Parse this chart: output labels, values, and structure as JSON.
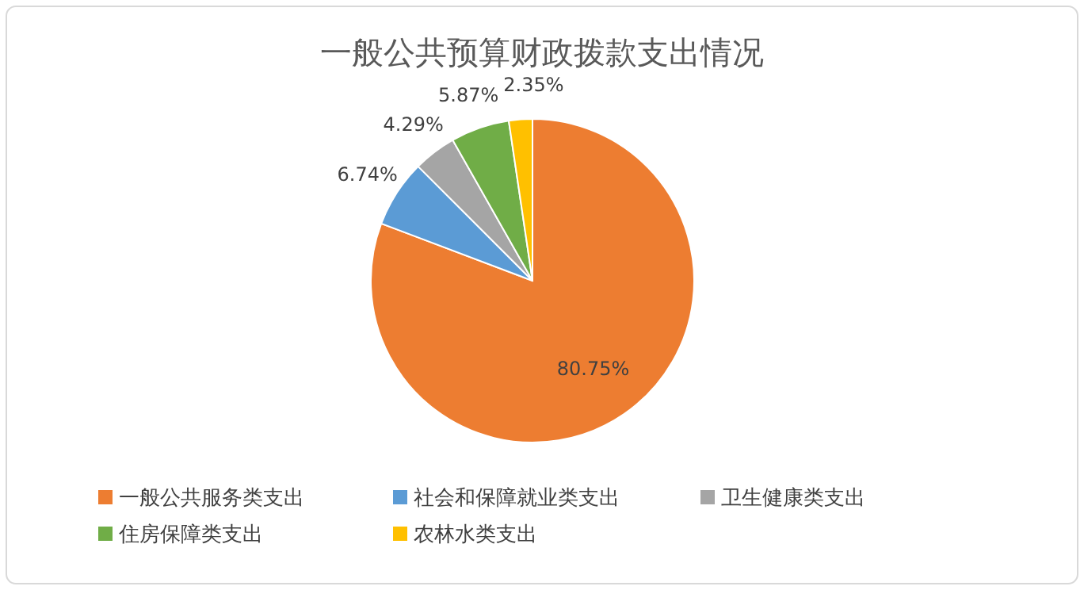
{
  "chart_data": {
    "type": "pie",
    "title": "一般公共预算财政拨款支出情况",
    "categories": [
      "一般公共服务类支出",
      "社会和保障就业类支出",
      "卫生健康类支出",
      "住房保障类支出",
      "农林水类支出"
    ],
    "values": [
      80.75,
      6.74,
      4.29,
      5.87,
      2.35
    ],
    "colors": [
      "#ed7d31",
      "#5b9bd5",
      "#a5a5a5",
      "#70ad47",
      "#ffc000"
    ],
    "value_labels": [
      "80.75%",
      "6.74%",
      "4.29%",
      "5.87%",
      "2.35%"
    ],
    "legend": "bottom"
  }
}
